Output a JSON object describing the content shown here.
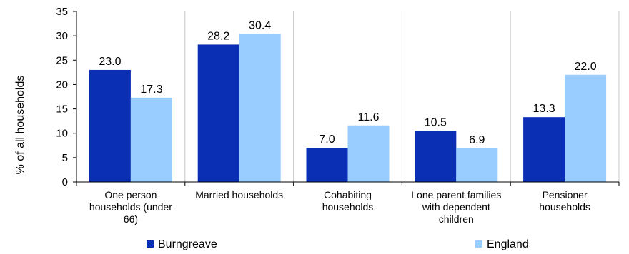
{
  "chart_data": {
    "type": "bar",
    "ylabel": "% of all households",
    "ylim": [
      0,
      35
    ],
    "yticks": [
      0,
      5,
      10,
      15,
      20,
      25,
      30,
      35
    ],
    "grid": "vertical separators between categories",
    "legend_position": "bottom",
    "categories": [
      [
        "One person",
        "households (under",
        "66)"
      ],
      [
        "Married households"
      ],
      [
        "Cohabiting",
        "households"
      ],
      [
        "Lone parent families",
        "with dependent",
        "children"
      ],
      [
        "Pensioner",
        "households"
      ]
    ],
    "series": [
      {
        "name": "Burngreave",
        "color": "#0a2eb4",
        "values": [
          23.0,
          28.2,
          7.0,
          10.5,
          13.3
        ],
        "labels": [
          "23.0",
          "28.2",
          "7.0",
          "10.5",
          "13.3"
        ]
      },
      {
        "name": "England",
        "color": "#99ccff",
        "values": [
          17.3,
          30.4,
          11.6,
          6.9,
          22.0
        ],
        "labels": [
          "17.3",
          "30.4",
          "11.6",
          "6.9",
          "22.0"
        ]
      }
    ]
  }
}
